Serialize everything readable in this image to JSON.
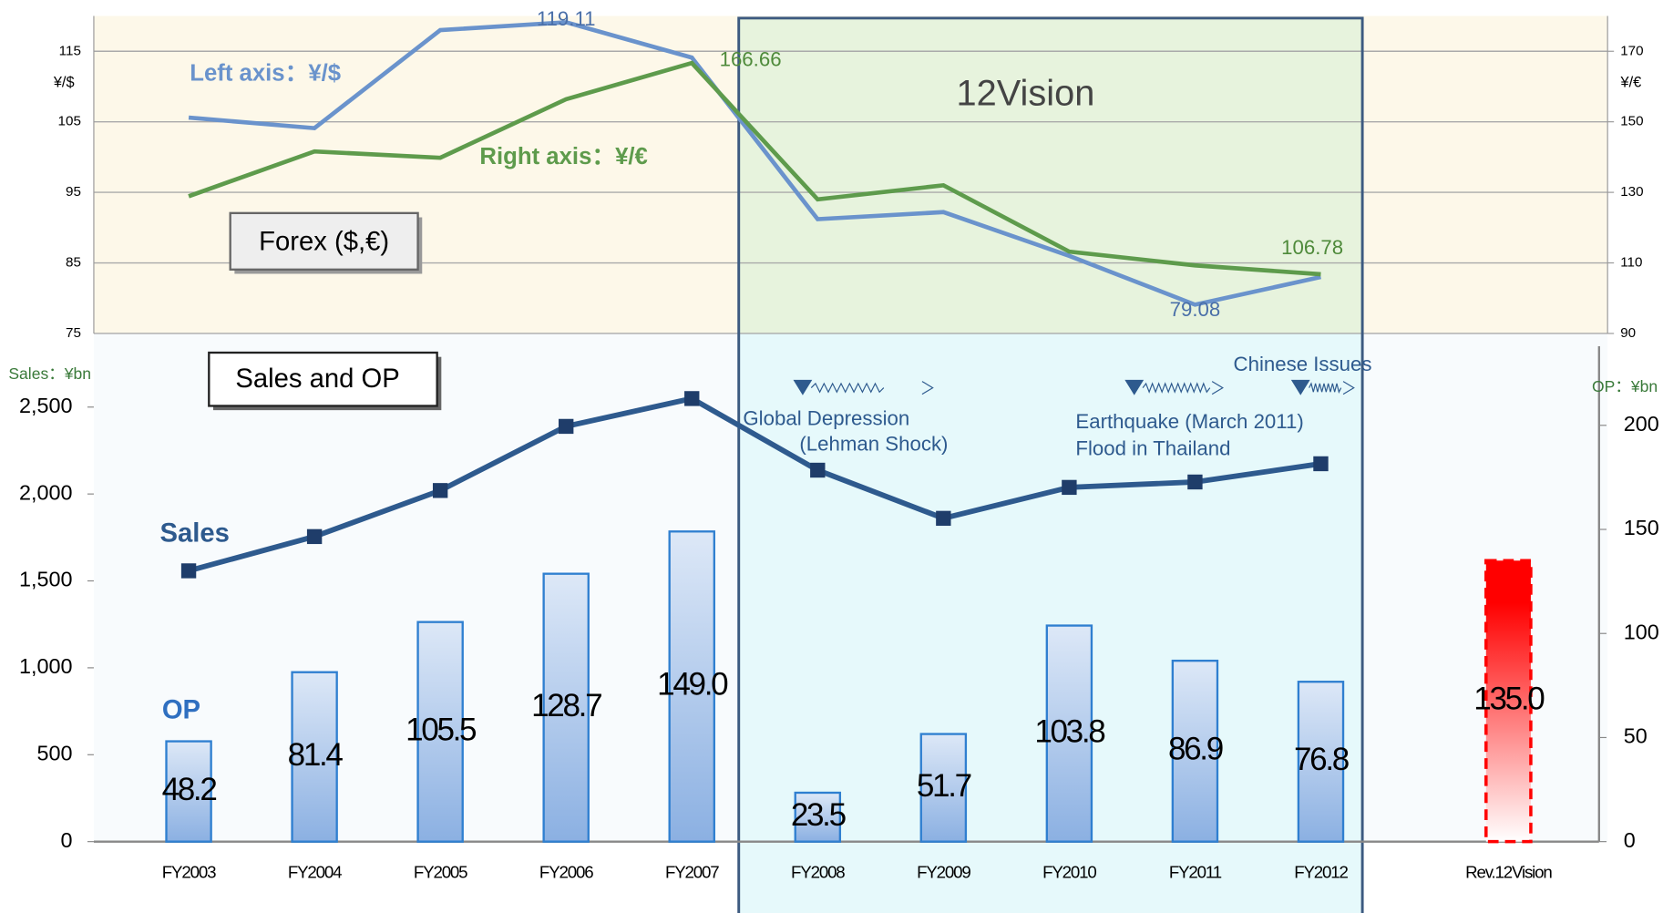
{
  "chart_data": [
    {
      "type": "line",
      "title": "Forex ($,€)",
      "categories": [
        "FY2003",
        "FY2004",
        "FY2005",
        "FY2006",
        "FY2007",
        "FY2008",
        "FY2009",
        "FY2010",
        "FY2011",
        "FY2012"
      ],
      "series": [
        {
          "name": "Left axis：¥/$",
          "color": "#6a93cc",
          "values": [
            105.6,
            104.1,
            118.0,
            119.11,
            114.1,
            91.2,
            92.2,
            86.0,
            79.08,
            83.0
          ],
          "value_labels": [
            null,
            null,
            null,
            "119.11",
            null,
            null,
            null,
            null,
            "79.08",
            null
          ]
        },
        {
          "name": "Right axis：¥/€",
          "color": "#5e9b4c",
          "axis": "y2",
          "values": [
            128.9,
            141.6,
            139.8,
            156.4,
            166.66,
            128.0,
            132.0,
            113.2,
            109.3,
            106.78
          ],
          "value_labels": [
            null,
            null,
            null,
            null,
            "166.66",
            null,
            null,
            null,
            null,
            "106.78"
          ]
        }
      ],
      "ylabel": "¥/$",
      "y2label": "¥/€",
      "ylim": [
        75,
        120
      ],
      "yticks": [
        75,
        85,
        95,
        105,
        115
      ],
      "y2lim": [
        90,
        180
      ],
      "y2ticks": [
        90,
        110,
        130,
        150,
        170
      ],
      "grid": true,
      "annotations": [
        "12Vision"
      ]
    },
    {
      "type": "bar",
      "title": "Sales and OP",
      "categories": [
        "FY2003",
        "FY2004",
        "FY2005",
        "FY2006",
        "FY2007",
        "FY2008",
        "FY2009",
        "FY2010",
        "FY2011",
        "FY2012",
        "Rev.12Vision"
      ],
      "series": [
        {
          "name": "Sales",
          "type": "line",
          "color": "#2e5a8e",
          "values": [
            1558,
            1755,
            2020,
            2389,
            2549,
            2137,
            1860,
            2038,
            2069,
            2174,
            null
          ]
        },
        {
          "name": "OP",
          "type": "bar",
          "axis": "y2",
          "color": "#2f7fd0",
          "colors": [
            "#2f7fd0",
            "#2f7fd0",
            "#2f7fd0",
            "#2f7fd0",
            "#2f7fd0",
            "#2f7fd0",
            "#2f7fd0",
            "#2f7fd0",
            "#2f7fd0",
            "#2f7fd0",
            "#ff0000"
          ],
          "values": [
            48.2,
            81.4,
            105.5,
            128.7,
            149.0,
            23.5,
            51.7,
            103.8,
            86.9,
            76.8,
            135.0
          ],
          "value_labels": [
            "48.2",
            "81.4",
            "105.5",
            "128.7",
            "149.0",
            "23.5",
            "51.7",
            "103.8",
            "86.9",
            "76.8",
            "135.0"
          ]
        }
      ],
      "ylabel": "Sales：¥bn",
      "y2label": "OP：¥bn",
      "ylim": [
        0,
        2850
      ],
      "yticks": [
        0,
        500,
        {
          "value": 1000,
          "label": "1,000"
        },
        {
          "value": 1500,
          "label": "1,500"
        },
        {
          "value": 2000,
          "label": "2,000"
        },
        {
          "value": 2500,
          "label": "2,500"
        }
      ],
      "y2lim": [
        0,
        238
      ],
      "y2ticks": [
        0,
        50,
        100,
        150,
        200
      ],
      "annotations": [
        "Global Depression",
        "(Lehman Shock)",
        "Earthquake (March 2011)",
        "Flood in Thailand",
        "Chinese Issues"
      ]
    }
  ]
}
